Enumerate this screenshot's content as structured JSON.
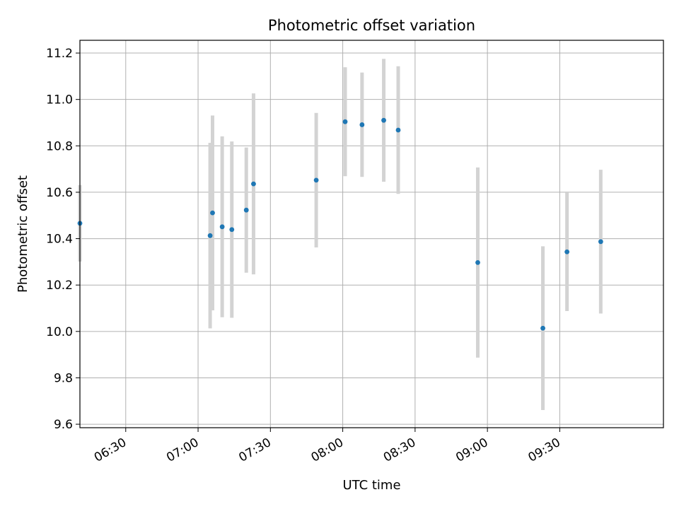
{
  "chart_data": {
    "type": "scatter",
    "title": "Photometric offset variation",
    "xlabel": "UTC time",
    "ylabel": "Photometric offset",
    "xlim": [
      "06:11",
      "10:13"
    ],
    "ylim": [
      9.585,
      11.255
    ],
    "x_ticks": [
      "06:30",
      "07:00",
      "07:30",
      "08:00",
      "08:30",
      "09:00",
      "09:30"
    ],
    "y_ticks": [
      "9.6",
      "9.8",
      "10.0",
      "10.2",
      "10.4",
      "10.6",
      "10.8",
      "11.0",
      "11.2"
    ],
    "grid": true,
    "marker_color": "#1f77b4",
    "errorbar_color": "#d3d3d3",
    "points": [
      {
        "time": "06:11",
        "y": 10.466,
        "err": 0.165
      },
      {
        "time": "07:05",
        "y": 10.413,
        "err": 0.4
      },
      {
        "time": "07:06",
        "y": 10.511,
        "err": 0.42
      },
      {
        "time": "07:10",
        "y": 10.451,
        "err": 0.39
      },
      {
        "time": "07:14",
        "y": 10.439,
        "err": 0.38
      },
      {
        "time": "07:20",
        "y": 10.523,
        "err": 0.27
      },
      {
        "time": "07:23",
        "y": 10.636,
        "err": 0.39
      },
      {
        "time": "07:49",
        "y": 10.652,
        "err": 0.29
      },
      {
        "time": "08:01",
        "y": 10.904,
        "err": 0.235
      },
      {
        "time": "08:08",
        "y": 10.891,
        "err": 0.225
      },
      {
        "time": "08:17",
        "y": 10.91,
        "err": 0.265
      },
      {
        "time": "08:23",
        "y": 10.868,
        "err": 0.275
      },
      {
        "time": "08:56",
        "y": 10.297,
        "err": 0.41
      },
      {
        "time": "09:23",
        "y": 10.014,
        "err": 0.353
      },
      {
        "time": "09:33",
        "y": 10.343,
        "err": 0.255
      },
      {
        "time": "09:47",
        "y": 10.387,
        "err": 0.31
      }
    ]
  }
}
